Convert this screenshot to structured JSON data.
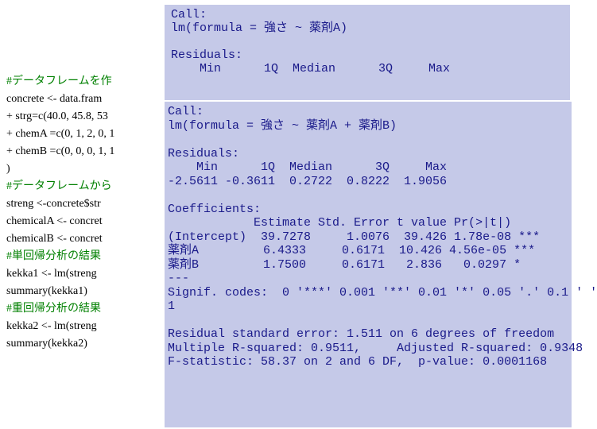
{
  "overlay1": {
    "lines": [
      "Call:",
      "lm(formula = 強さ ~ 薬剤A)",
      "",
      "Residuals:",
      "    Min      1Q  Median      3Q     Max"
    ]
  },
  "overlay2": {
    "lines": [
      "Call:",
      "lm(formula = 強さ ~ 薬剤A + 薬剤B)",
      "",
      "Residuals:",
      "    Min      1Q  Median      3Q     Max",
      "-2.5611 -0.3611  0.2722  0.8222  1.9056",
      "",
      "Coefficients:",
      "            Estimate Std. Error t value Pr(>|t|)",
      "(Intercept)  39.7278     1.0076  39.426 1.78e-08 ***",
      "薬剤A         6.4333     0.6171  10.426 4.56e-05 ***",
      "薬剤B         1.7500     0.6171   2.836   0.0297 *",
      "---",
      "Signif. codes:  0 '***' 0.001 '**' 0.01 '*' 0.05 '.' 0.1 ' '",
      "1",
      "",
      "Residual standard error: 1.511 on 6 degrees of freedom",
      "Multiple R-squared: 0.9511,     Adjusted R-squared: 0.9348",
      "F-statistic: 58.37 on 2 and 6 DF,  p-value: 0.0001168"
    ]
  },
  "bg": {
    "lines": [
      {
        "cls": "comment",
        "text": "#データフレームを作"
      },
      {
        "cls": "black",
        "text": "concrete <- data.fram"
      },
      {
        "cls": "black",
        "text": "+ strg=c(40.0, 45.8, 53"
      },
      {
        "cls": "black",
        "text": "+ chemA =c(0, 1, 2, 0, 1"
      },
      {
        "cls": "black",
        "text": "+ chemB =c(0, 0, 0, 1, 1"
      },
      {
        "cls": "black",
        "text": ")"
      },
      {
        "cls": "comment",
        "text": "#データフレームから"
      },
      {
        "cls": "black",
        "text": "streng <-concrete$str"
      },
      {
        "cls": "black",
        "text": "chemicalA <- concret"
      },
      {
        "cls": "black",
        "text": "chemicalB <- concret"
      },
      {
        "cls": "comment",
        "text": "#単回帰分析の結果"
      },
      {
        "cls": "black",
        "text": " kekka1 <- lm(streng"
      },
      {
        "cls": "black",
        "text": "summary(kekka1)"
      },
      {
        "cls": "comment",
        "text": "#重回帰分析の結果"
      },
      {
        "cls": "black",
        "text": " kekka2 <- lm(streng"
      },
      {
        "cls": "black",
        "text": "summary(kekka2)"
      }
    ]
  },
  "colors": {
    "overlay_bg": "#c5c9e8",
    "overlay_text": "#1a1a8a",
    "comment": "#008000",
    "page_bg": "#ffffff"
  }
}
